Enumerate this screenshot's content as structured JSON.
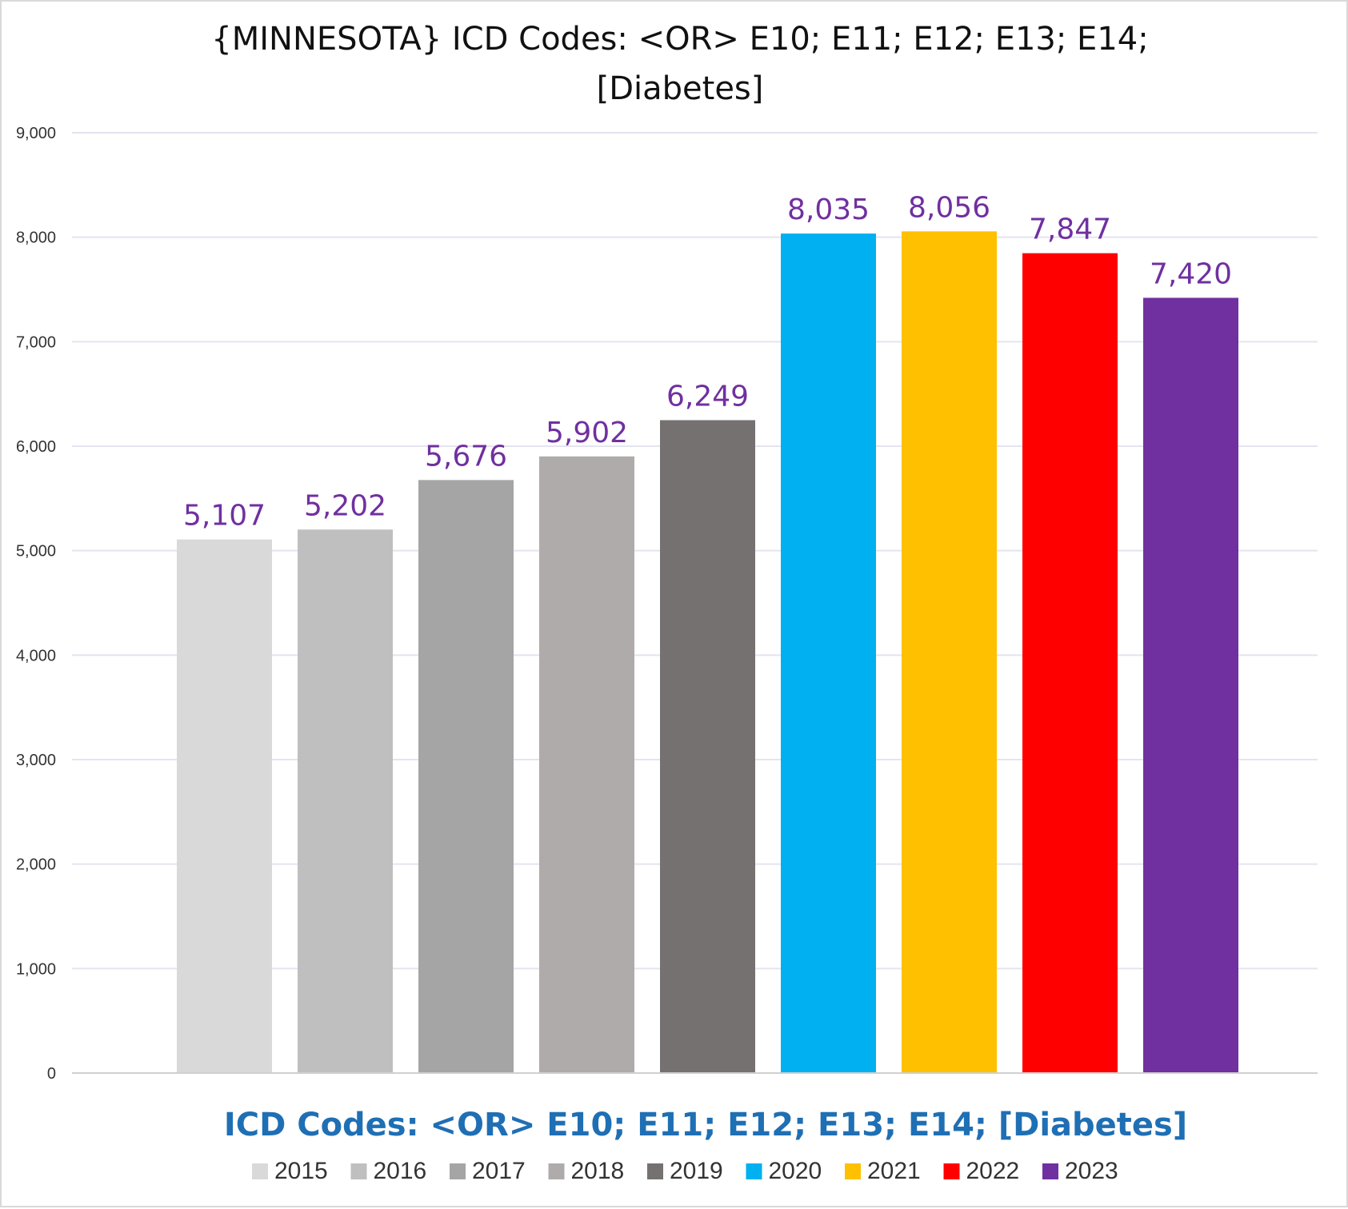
{
  "chart_data": {
    "type": "bar",
    "title_lines": [
      "{MINNESOTA}  ICD Codes: <OR>  E10; E11; E12; E13; E14;",
      "[Diabetes]"
    ],
    "xlabel": "ICD Codes: <OR>  E10; E11; E12; E13; E14;  [Diabetes]",
    "ylabel": "",
    "ylim": [
      0,
      9000
    ],
    "yticks": [
      0,
      1000,
      2000,
      3000,
      4000,
      5000,
      6000,
      7000,
      8000,
      9000
    ],
    "ytick_labels": [
      "0",
      "1,000",
      "2,000",
      "3,000",
      "4,000",
      "5,000",
      "6,000",
      "7,000",
      "8,000",
      "9,000"
    ],
    "grid": true,
    "legend_position": "bottom",
    "series": [
      {
        "name": "2015",
        "value": 5107,
        "label": "5,107",
        "color": "#d9d9d9"
      },
      {
        "name": "2016",
        "value": 5202,
        "label": "5,202",
        "color": "#bfbfbf"
      },
      {
        "name": "2017",
        "value": 5676,
        "label": "5,676",
        "color": "#a5a5a5"
      },
      {
        "name": "2018",
        "value": 5902,
        "label": "5,902",
        "color": "#afabab"
      },
      {
        "name": "2019",
        "value": 6249,
        "label": "6,249",
        "color": "#767171"
      },
      {
        "name": "2020",
        "value": 8035,
        "label": "8,035",
        "color": "#00b0f0"
      },
      {
        "name": "2021",
        "value": 8056,
        "label": "8,056",
        "color": "#ffc000"
      },
      {
        "name": "2022",
        "value": 7847,
        "label": "7,847",
        "color": "#ff0000"
      },
      {
        "name": "2023",
        "value": 7420,
        "label": "7,420",
        "color": "#7030a0"
      }
    ],
    "colors": {
      "data_label": "#7030a0",
      "axis_title": "#1f6fb4",
      "gridline": "#e4e4f0"
    }
  }
}
